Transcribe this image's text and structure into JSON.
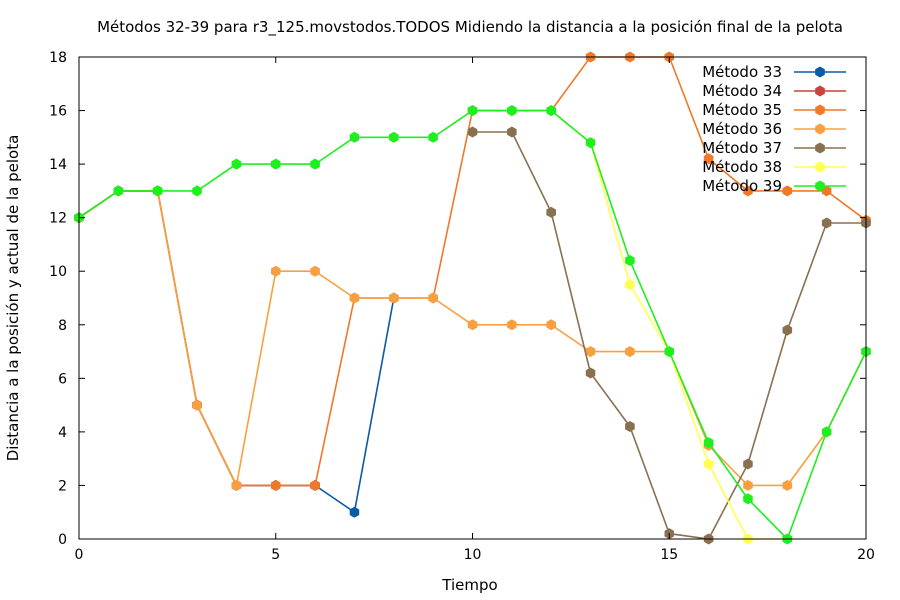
{
  "chart_data": {
    "type": "line",
    "title": "Métodos 32-39 para r3_125.movstodos.TODOS Midiendo la distancia a la posición final de la pelota",
    "xlabel": "Tiempo",
    "ylabel": "Distancia a la posición y actual de la pelota",
    "xlim": [
      0,
      20
    ],
    "ylim": [
      0,
      18
    ],
    "xticks": [
      "0",
      "5",
      "10",
      "15",
      "20"
    ],
    "yticks": [
      "0",
      "2",
      "4",
      "6",
      "8",
      "10",
      "12",
      "14",
      "16",
      "18"
    ],
    "grid": false,
    "legend_position": "top-right",
    "series": [
      {
        "name": "Método 33",
        "color": "#0a5aa5",
        "x": [
          0,
          1,
          2,
          3,
          4,
          5,
          6,
          7,
          8
        ],
        "y": [
          12,
          13,
          13,
          5,
          2,
          2,
          2,
          1,
          9
        ]
      },
      {
        "name": "Método 34",
        "color": "#c8443c",
        "x": [
          0,
          1,
          2,
          3,
          4,
          5,
          6
        ],
        "y": [
          12,
          13,
          13,
          5,
          2,
          2,
          2
        ]
      },
      {
        "name": "Método 35",
        "color": "#f07828",
        "x": [
          0,
          1,
          2,
          3,
          4,
          5,
          6,
          7,
          8,
          9,
          10,
          11,
          12,
          13,
          14,
          15,
          16,
          17,
          18,
          19,
          20
        ],
        "y": [
          12,
          13,
          13,
          5,
          2,
          2,
          2,
          9,
          9,
          9,
          16,
          16,
          16,
          18,
          18,
          18,
          14.2,
          13,
          13,
          13,
          11.9
        ]
      },
      {
        "name": "Método 36",
        "color": "#f8a040",
        "x": [
          0,
          1,
          2,
          3,
          4,
          5,
          6,
          7,
          8,
          9,
          10,
          11,
          12,
          13,
          14,
          15,
          16,
          17,
          18,
          19,
          20
        ],
        "y": [
          12,
          13,
          13,
          5,
          2,
          10,
          10,
          9,
          9,
          9,
          8,
          8,
          8,
          7,
          7,
          7,
          3.5,
          2,
          2,
          4,
          7
        ]
      },
      {
        "name": "Método 37",
        "color": "#887050",
        "x": [
          10,
          11,
          12,
          13,
          14,
          15,
          16,
          17,
          18,
          19,
          20
        ],
        "y": [
          15.2,
          15.2,
          12.2,
          6.2,
          4.2,
          0.2,
          0,
          2.8,
          7.8,
          11.8,
          11.8
        ]
      },
      {
        "name": "Método 38",
        "color": "#ffff50",
        "x": [
          12,
          13,
          14,
          15,
          16,
          17,
          18
        ],
        "y": [
          16,
          14.8,
          9.5,
          7,
          2.8,
          0,
          0
        ]
      },
      {
        "name": "Método 39",
        "color": "#1ef01e",
        "x": [
          0,
          1,
          2,
          3,
          4,
          5,
          6,
          7,
          8,
          9,
          10,
          11,
          12,
          13,
          14,
          15,
          16,
          17,
          18,
          19,
          20
        ],
        "y": [
          12,
          13,
          13,
          13,
          14,
          14,
          14,
          15,
          15,
          15,
          16,
          16,
          16,
          14.8,
          10.4,
          7,
          3.6,
          1.5,
          0,
          4,
          7
        ]
      }
    ]
  }
}
